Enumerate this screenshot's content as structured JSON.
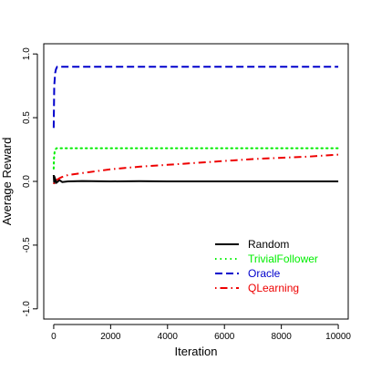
{
  "chart_data": {
    "type": "line",
    "title": "",
    "xlabel": "Iteration",
    "ylabel": "Average Reward",
    "xlim": [
      0,
      10000
    ],
    "ylim": [
      -1.0,
      1.0
    ],
    "x_ticks": [
      0,
      2000,
      4000,
      6000,
      8000,
      10000
    ],
    "x_tick_labels": [
      "0",
      "2000",
      "4000",
      "6000",
      "8000",
      "10000"
    ],
    "y_ticks": [
      -1.0,
      -0.5,
      0.0,
      0.5,
      1.0
    ],
    "y_tick_labels": [
      "-1.0",
      "-0.5",
      "0.0",
      "0.5",
      "1.0"
    ],
    "grid": false,
    "legend_position": "bottom-right",
    "series": [
      {
        "name": "Random",
        "color": "#000000",
        "dash": "solid",
        "x": [
          0,
          20,
          50,
          100,
          200,
          300,
          500,
          1000,
          2000,
          3000,
          4000,
          6000,
          8000,
          10000
        ],
        "y": [
          0.05,
          -0.02,
          0.02,
          -0.01,
          0.01,
          -0.005,
          0.0,
          0.003,
          0.0,
          0.002,
          0.0,
          0.0,
          0.0,
          0.0
        ]
      },
      {
        "name": "TrivialFollower",
        "color": "#00ee00",
        "dash": "dotted",
        "x": [
          0,
          10,
          30,
          60,
          100,
          200,
          500,
          1000,
          2000,
          4000,
          6000,
          8000,
          10000
        ],
        "y": [
          0.1,
          0.18,
          0.23,
          0.25,
          0.26,
          0.26,
          0.26,
          0.26,
          0.26,
          0.26,
          0.26,
          0.26,
          0.26
        ],
        "start_x": 20
      },
      {
        "name": "Oracle",
        "color": "#0000cc",
        "dash": "dashed",
        "x": [
          0,
          20,
          50,
          80,
          120,
          200,
          500,
          1000,
          2000,
          4000,
          6000,
          8000,
          10000
        ],
        "y": [
          0.42,
          0.75,
          0.85,
          0.88,
          0.9,
          0.9,
          0.9,
          0.9,
          0.9,
          0.9,
          0.9,
          0.9,
          0.9
        ]
      },
      {
        "name": "QLearning",
        "color": "#ee0000",
        "dash": "dotdash",
        "x": [
          0,
          50,
          100,
          200,
          300,
          500,
          1000,
          1500,
          2000,
          3000,
          4000,
          5000,
          6000,
          7000,
          8000,
          9000,
          10000
        ],
        "y": [
          -0.02,
          0.0,
          0.01,
          0.025,
          0.035,
          0.05,
          0.065,
          0.08,
          0.095,
          0.115,
          0.13,
          0.145,
          0.16,
          0.175,
          0.185,
          0.195,
          0.21
        ]
      }
    ]
  }
}
